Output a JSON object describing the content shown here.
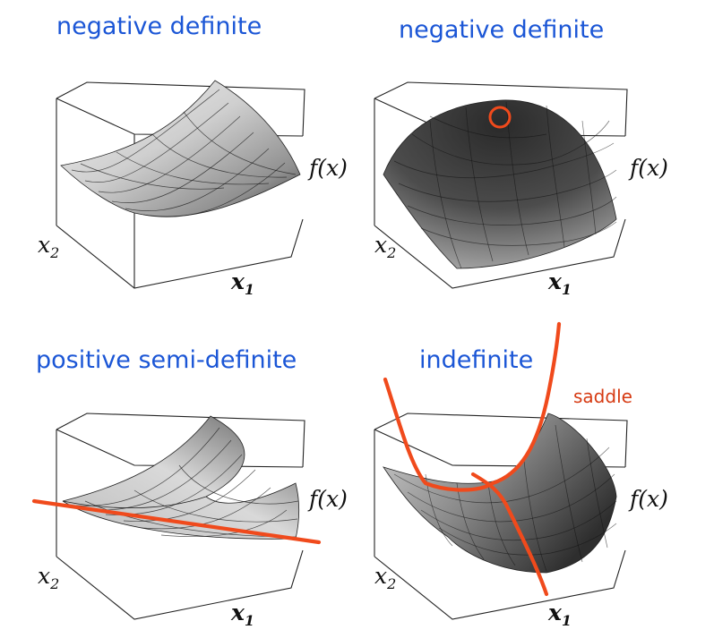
{
  "panels": [
    {
      "title": "negative definite",
      "labels": {
        "fx": "f(x)",
        "x2": "x",
        "x2_sub": "2",
        "x1": "x",
        "x1_sub": "1"
      }
    },
    {
      "title": "negative definite",
      "labels": {
        "fx": "f(x)",
        "x2": "x",
        "x2_sub": "2",
        "x1": "x",
        "x1_sub": "1"
      }
    },
    {
      "title": "positive semi-definite",
      "labels": {
        "fx": "f(x)",
        "x2": "x",
        "x2_sub": "2",
        "x1": "x",
        "x1_sub": "1"
      }
    },
    {
      "title": "indefinite",
      "annotation": "saddle",
      "labels": {
        "fx": "f(x)",
        "x2": "x",
        "x2_sub": "2",
        "x1": "x",
        "x1_sub": "1"
      }
    }
  ],
  "colors": {
    "title": "#1b56d6",
    "highlight": "#f04a1c",
    "annotation": "#d63a12"
  }
}
